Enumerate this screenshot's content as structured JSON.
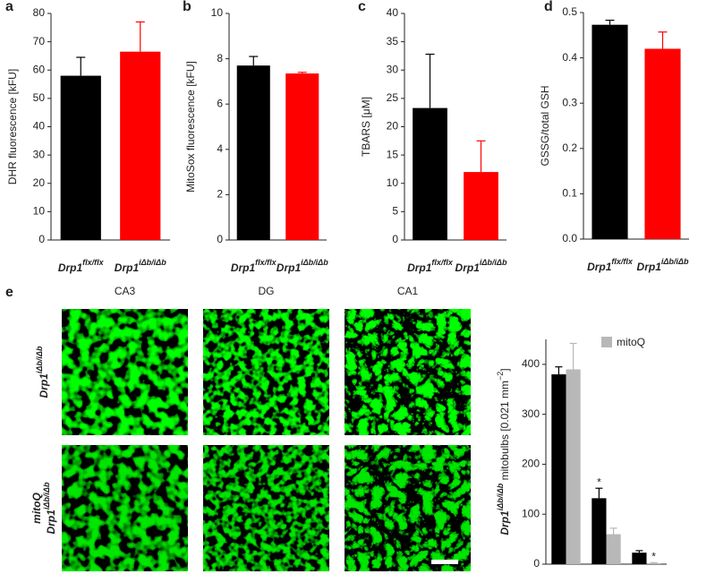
{
  "chart_data": [
    {
      "type": "bar",
      "panel": "a",
      "ylabel": "DHR fluorescence [kFU]",
      "categories": [
        "Drp1",
        "Drp1"
      ],
      "category_superscripts": [
        "flx/flx",
        "iΔb/iΔb"
      ],
      "values": [
        58,
        66.5
      ],
      "errors": [
        6.5,
        10.5
      ],
      "colors": [
        "#000000",
        "#ff0000"
      ],
      "ylim": [
        0,
        80
      ],
      "yticks": [
        0,
        10,
        20,
        30,
        40,
        50,
        60,
        70,
        80
      ]
    },
    {
      "type": "bar",
      "panel": "b",
      "ylabel": "MitoSox fluorescence [kFU]",
      "categories": [
        "Drp1",
        "Drp1"
      ],
      "category_superscripts": [
        "flx/flx",
        "iΔb/iΔb"
      ],
      "values": [
        7.7,
        7.35
      ],
      "errors": [
        0.4,
        0.05
      ],
      "colors": [
        "#000000",
        "#ff0000"
      ],
      "ylim": [
        0,
        10
      ],
      "yticks": [
        0,
        2,
        4,
        6,
        8,
        10
      ]
    },
    {
      "type": "bar",
      "panel": "c",
      "ylabel": "TBARS [μM]",
      "categories": [
        "Drp1",
        "Drp1"
      ],
      "category_superscripts": [
        "flx/flx",
        "iΔb/iΔb"
      ],
      "values": [
        23.3,
        12
      ],
      "errors": [
        9.5,
        5.5
      ],
      "colors": [
        "#000000",
        "#ff0000"
      ],
      "ylim": [
        0,
        40
      ],
      "yticks": [
        0,
        5,
        10,
        15,
        20,
        25,
        30,
        35,
        40
      ]
    },
    {
      "type": "bar",
      "panel": "d",
      "ylabel": "GSSG/total GSH",
      "categories": [
        "Drp1",
        "Drp1"
      ],
      "category_superscripts": [
        "flx/flx",
        "iΔb/iΔb"
      ],
      "values": [
        0.473,
        0.42
      ],
      "errors": [
        0.01,
        0.037
      ],
      "colors": [
        "#000000",
        "#ff0000"
      ],
      "ylim": [
        0,
        0.5
      ],
      "yticks": [
        {
          "value": 0,
          "label": "0.0"
        },
        0.1,
        0.2,
        0.3,
        0.4,
        0.5
      ]
    },
    {
      "type": "grouped-bar",
      "ylabel": [
        "Drp1",
        "iΔb/iΔb",
        " mitobulbs [0.021 mm",
        "−2",
        "]"
      ],
      "categories": [
        "CA3",
        "DG",
        "CA1"
      ],
      "series": [
        {
          "color": "#000000",
          "values": [
            380,
            132,
            23
          ],
          "errors": [
            15,
            20,
            4
          ],
          "significance": [
            null,
            "*",
            null
          ]
        },
        {
          "name": "mitoQ",
          "color": "#b8b8b8",
          "values": [
            390,
            60,
            2
          ],
          "errors": [
            52,
            12,
            1
          ],
          "significance": [
            null,
            null,
            "*"
          ]
        }
      ],
      "ylim": [
        0,
        450
      ],
      "yticks": [
        0,
        100,
        200,
        300,
        400
      ]
    }
  ],
  "micrographs": {
    "panel": "e",
    "columns": [
      "CA3",
      "DG",
      "CA1"
    ],
    "rows": [
      {
        "name": "Drp1",
        "sup": "iΔb/iΔb"
      },
      {
        "treatment": "mitoQ",
        "name": "Drp1",
        "sup": "iΔb/iΔb"
      }
    ]
  }
}
